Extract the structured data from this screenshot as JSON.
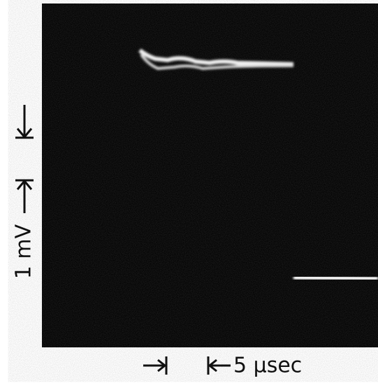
{
  "scale_labels": {
    "vertical": "1 mV",
    "horizontal": "5 μsec"
  }
}
